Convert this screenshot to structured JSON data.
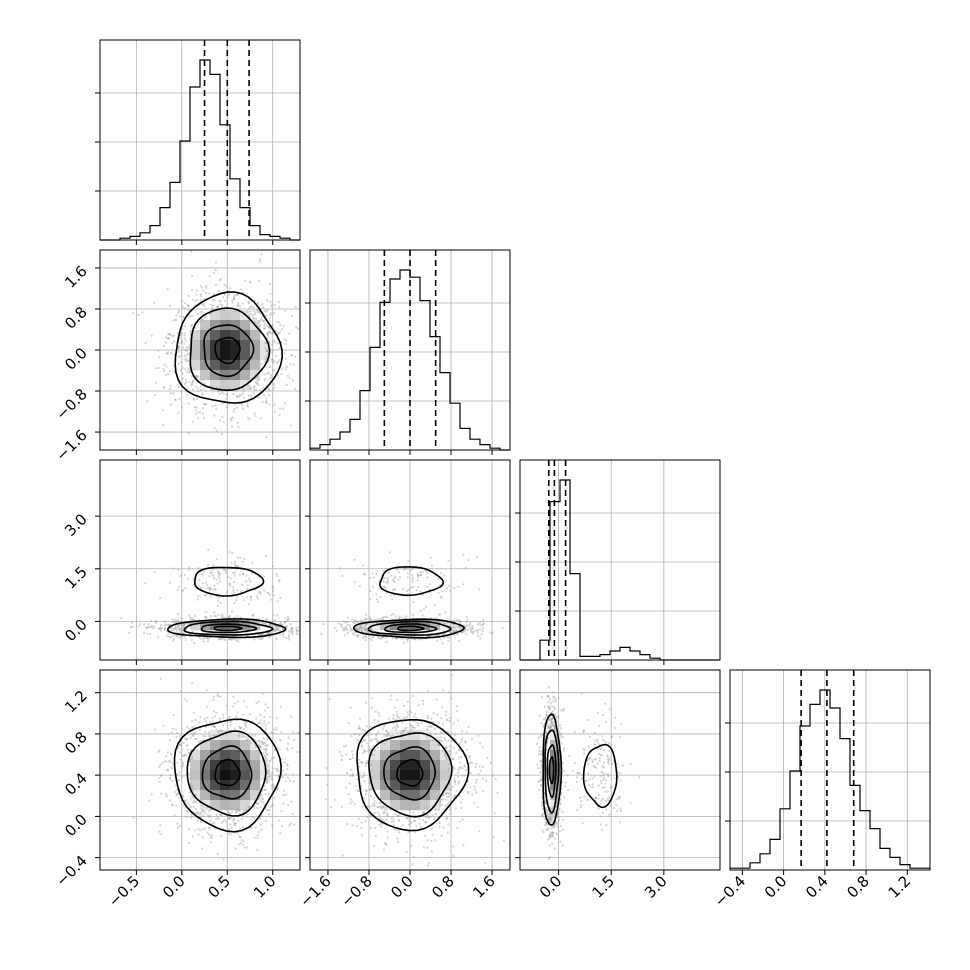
{
  "chart_data": {
    "type": "corner",
    "description_of_panels": "lower-triangular corner plot of 4 parameters: 1D histograms on diagonal, 2D density contours with scatter below",
    "grid": true,
    "colors": {
      "line": "#000000",
      "grid": "#b0b0b0",
      "points": "#a0a0a0",
      "background": "#ffffff"
    },
    "params": [
      {
        "id": "p0",
        "range": [
          -0.9,
          1.3
        ],
        "ticks": [
          -0.5,
          0.0,
          0.5,
          1.0
        ],
        "tick_labels": [
          "−0.5",
          "0.0",
          "0.5",
          "1.0"
        ],
        "quantiles": [
          0.25,
          0.5,
          0.74
        ]
      },
      {
        "id": "p1",
        "range": [
          -1.95,
          1.95
        ],
        "ticks": [
          -1.6,
          -0.8,
          0.0,
          0.8,
          1.6
        ],
        "tick_labels": [
          "−1.6",
          "−0.8",
          "0.0",
          "0.8",
          "1.6"
        ],
        "quantiles": [
          -0.5,
          0.0,
          0.5
        ]
      },
      {
        "id": "p2",
        "range": [
          -1.1,
          4.6
        ],
        "ticks": [
          0.0,
          1.5,
          3.0
        ],
        "tick_labels": [
          "0.0",
          "1.5",
          "3.0"
        ],
        "quantiles": [
          -0.28,
          -0.12,
          0.2
        ]
      },
      {
        "id": "p3",
        "range": [
          -0.52,
          1.42
        ],
        "ticks": [
          -0.4,
          0.0,
          0.4,
          0.8,
          1.2
        ],
        "tick_labels": [
          "−0.4",
          "0.0",
          "0.4",
          "0.8",
          "1.2"
        ],
        "quantiles": [
          0.17,
          0.42,
          0.68
        ]
      }
    ],
    "histograms": [
      {
        "param": "p0",
        "bin_start": -0.9,
        "bin_width": 0.11,
        "counts": [
          0,
          0,
          1,
          2,
          4,
          8,
          18,
          32,
          55,
          85,
          100,
          92,
          64,
          34,
          18,
          8,
          3,
          2,
          1,
          0
        ]
      },
      {
        "param": "p1",
        "bin_start": -1.95,
        "bin_width": 0.195,
        "counts": [
          1,
          3,
          6,
          10,
          17,
          33,
          57,
          82,
          95,
          100,
          96,
          83,
          63,
          43,
          26,
          12,
          6,
          3,
          1,
          0
        ]
      },
      {
        "param": "p2",
        "bin_start": -1.1,
        "bin_width": 0.285,
        "counts": [
          0,
          0,
          11,
          88,
          100,
          48,
          2,
          2,
          3,
          5,
          7,
          5,
          3,
          1,
          0,
          0,
          0,
          0,
          0,
          0
        ]
      },
      {
        "param": "p3",
        "bin_start": -0.52,
        "bin_width": 0.097,
        "counts": [
          1,
          1,
          4,
          9,
          17,
          34,
          55,
          80,
          92,
          100,
          90,
          73,
          47,
          33,
          23,
          12,
          7,
          3,
          1,
          1
        ]
      }
    ],
    "densities": [
      {
        "x": "p0",
        "y": "p1",
        "blobs": [
          {
            "cx": 0.5,
            "cy": 0.0,
            "sx": 0.27,
            "sy": 0.5,
            "w": 1
          }
        ]
      },
      {
        "x": "p0",
        "y": "p2",
        "blobs": [
          {
            "cx": 0.5,
            "cy": -0.2,
            "sx": 0.3,
            "sy": 0.12,
            "w": 1
          },
          {
            "cx": 0.5,
            "cy": 1.15,
            "sx": 0.28,
            "sy": 0.3,
            "w": 0.13
          }
        ]
      },
      {
        "x": "p1",
        "y": "p2",
        "blobs": [
          {
            "cx": 0.0,
            "cy": -0.2,
            "sx": 0.5,
            "sy": 0.12,
            "w": 1
          },
          {
            "cx": 0.0,
            "cy": 1.15,
            "sx": 0.45,
            "sy": 0.3,
            "w": 0.13
          }
        ]
      },
      {
        "x": "p0",
        "y": "p3",
        "blobs": [
          {
            "cx": 0.5,
            "cy": 0.42,
            "sx": 0.27,
            "sy": 0.25,
            "w": 1
          }
        ]
      },
      {
        "x": "p1",
        "y": "p3",
        "blobs": [
          {
            "cx": 0.0,
            "cy": 0.42,
            "sx": 0.5,
            "sy": 0.25,
            "w": 1
          }
        ]
      },
      {
        "x": "p2",
        "y": "p3",
        "blobs": [
          {
            "cx": -0.2,
            "cy": 0.45,
            "sx": 0.12,
            "sy": 0.25,
            "w": 1
          },
          {
            "cx": 1.2,
            "cy": 0.4,
            "sx": 0.35,
            "sy": 0.22,
            "w": 0.13
          }
        ]
      }
    ]
  }
}
